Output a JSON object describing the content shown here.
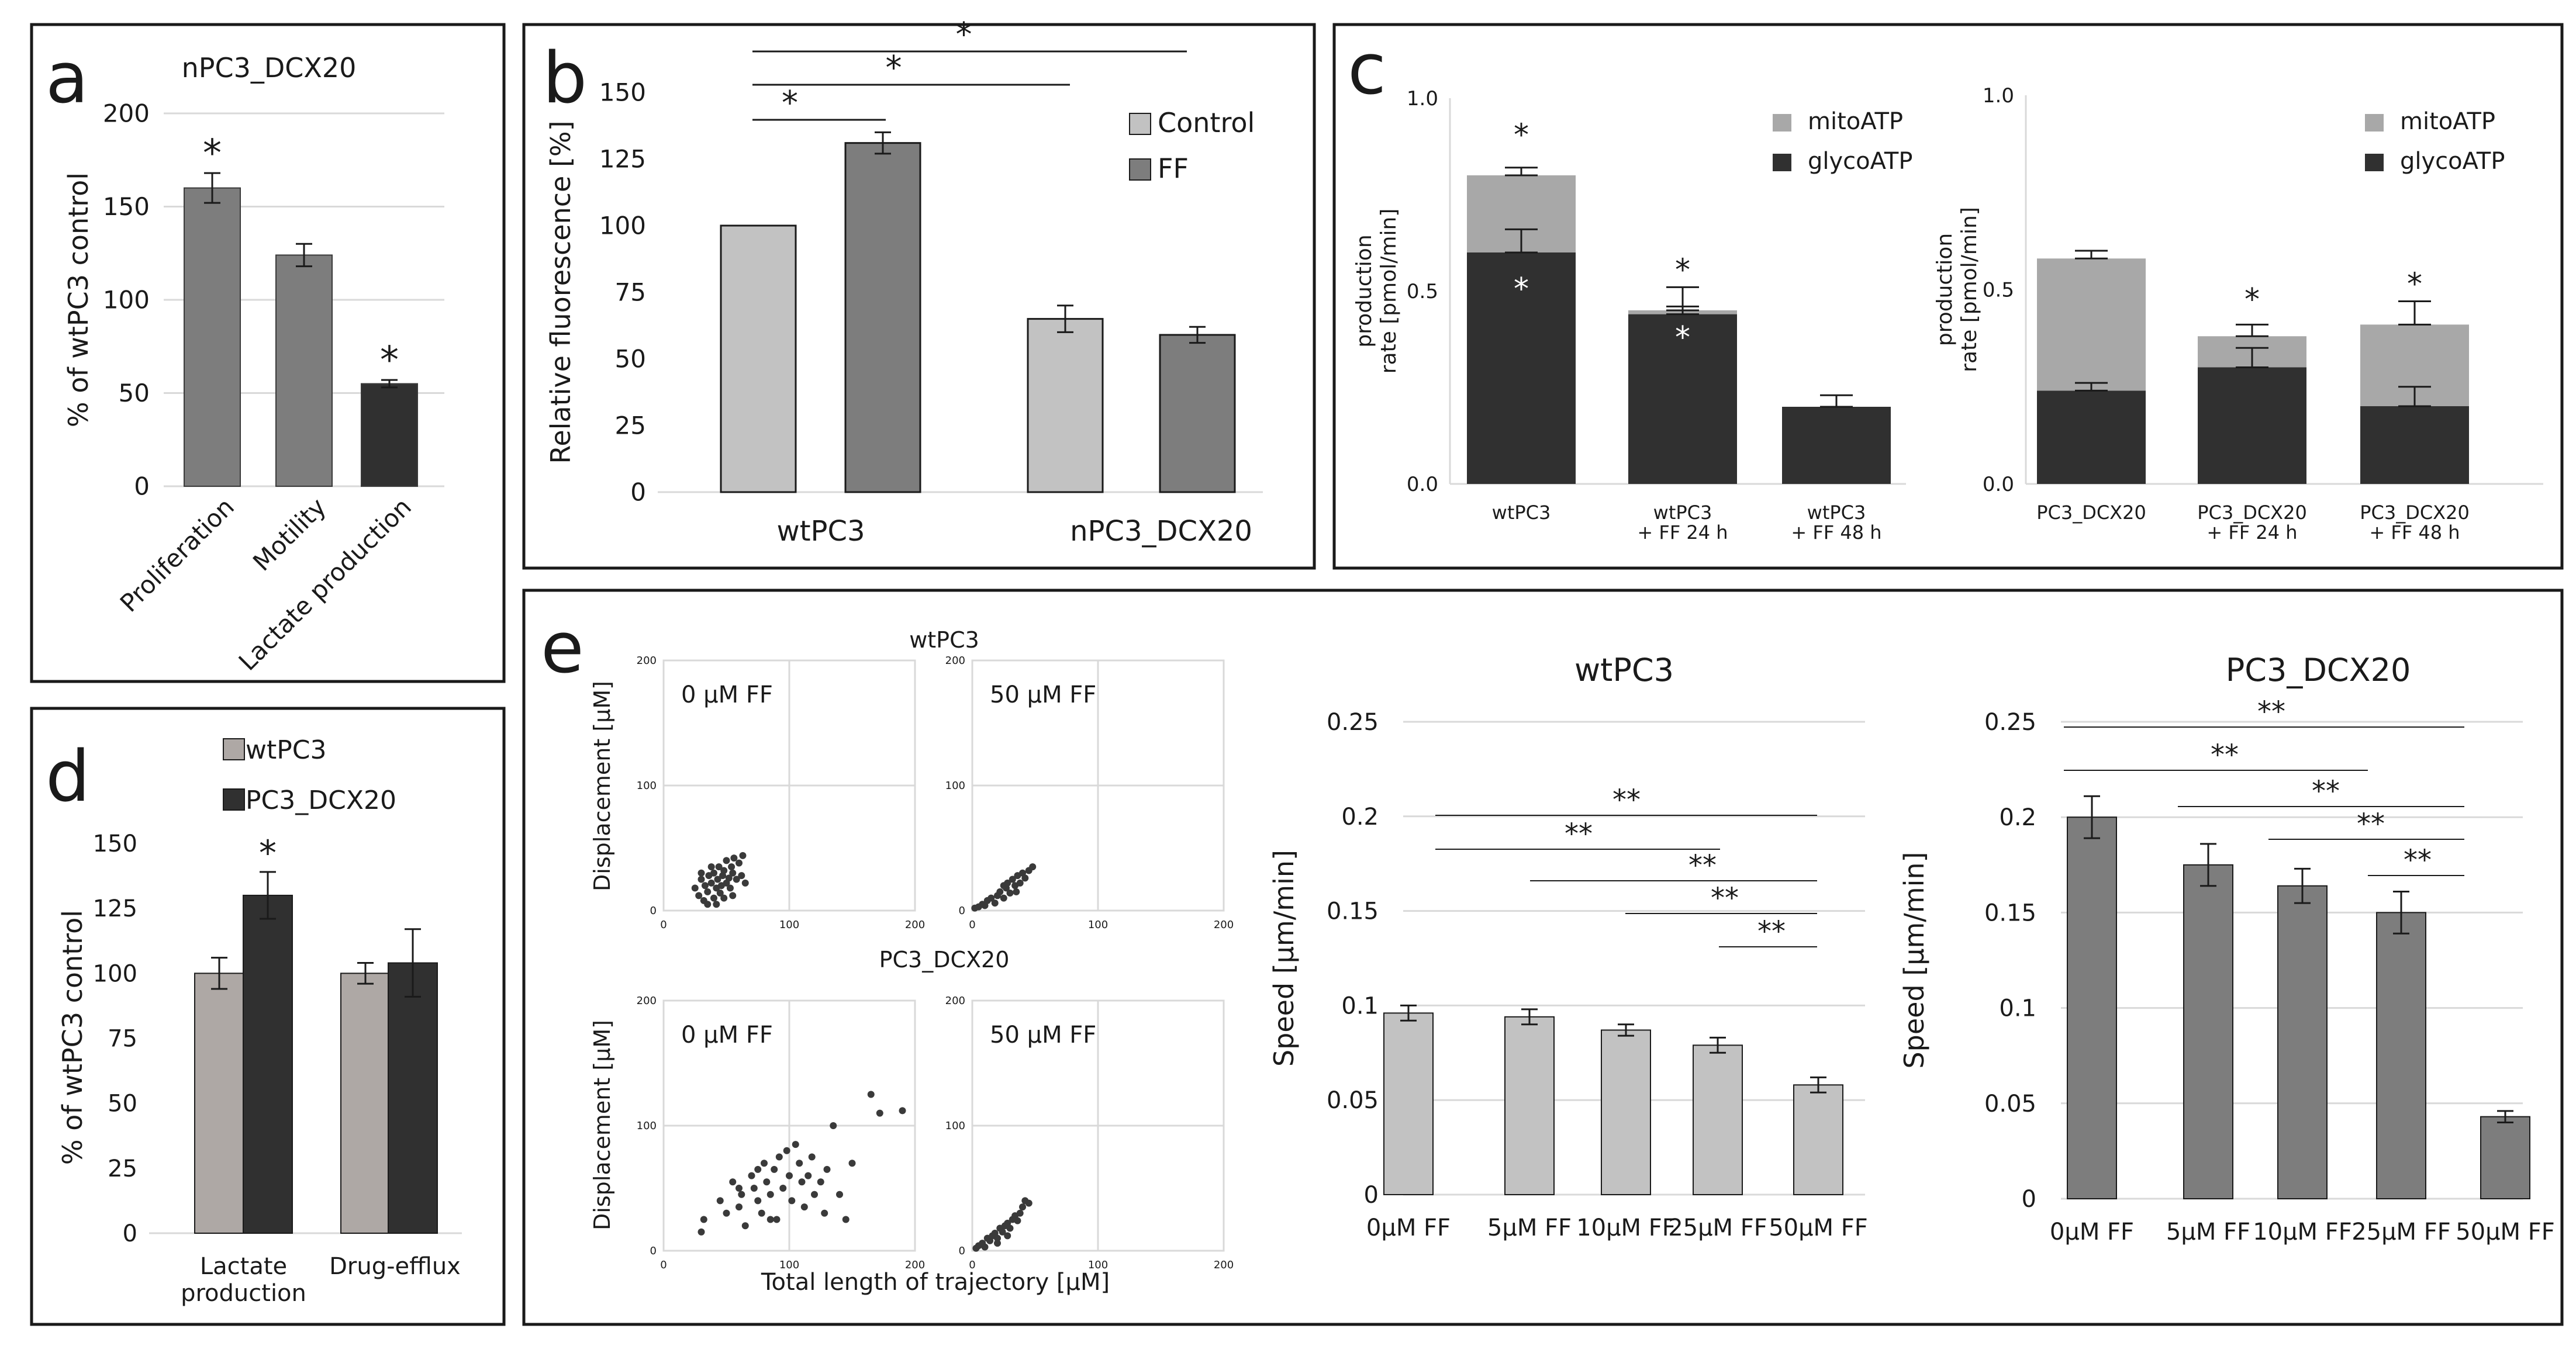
{
  "colors": {
    "light_gray": "#c2c2c2",
    "mid_gray": "#7d7d7d",
    "dark": "#303030",
    "taupe": "#aea8a5",
    "mito_gray": "#a8a8a8",
    "frame": "#1a1a1a",
    "grid": "#d9d9d9",
    "dot": "#3a3a3a"
  },
  "panels": {
    "a": {
      "letter": "a"
    },
    "b": {
      "letter": "b"
    },
    "c": {
      "letter": "c"
    },
    "d": {
      "letter": "d"
    },
    "e": {
      "letter": "e"
    }
  },
  "chart_data": [
    {
      "id": "a",
      "type": "bar",
      "title": "nPC3_DCX20",
      "ylabel": "% of wtPC3 control",
      "xlabel": "",
      "ylim": [
        0,
        200
      ],
      "yticks": [
        "0",
        "50",
        "100",
        "150",
        "200"
      ],
      "categories": [
        "Proliferation",
        "Motility",
        "Lactate production"
      ],
      "values": [
        160,
        124,
        55
      ],
      "errors": [
        8,
        6,
        2
      ],
      "bar_colors": [
        "mid_gray",
        "mid_gray",
        "dark"
      ],
      "significance": [
        "*",
        "",
        "*"
      ]
    },
    {
      "id": "b",
      "type": "bar",
      "title": "",
      "ylabel": "Relative fluorescence [%]",
      "xlabel": "",
      "ylim": [
        0,
        150
      ],
      "yticks": [
        "0",
        "25",
        "50",
        "75",
        "100",
        "125",
        "150"
      ],
      "categories": [
        "wtPC3",
        "nPC3_DCX20"
      ],
      "series": [
        {
          "name": "Control",
          "values": [
            100,
            65
          ],
          "errors": [
            0,
            5
          ]
        },
        {
          "name": "FF",
          "values": [
            131,
            59
          ],
          "errors": [
            4,
            3
          ]
        }
      ],
      "legend": [
        "Control",
        "FF"
      ],
      "legend_position": "top-right",
      "brackets": [
        "*",
        "*",
        "*"
      ]
    },
    {
      "id": "c-left",
      "type": "bar",
      "stacked": true,
      "ylabel": "production rate [pmol/min]",
      "ylim": [
        0,
        1.0
      ],
      "yticks": [
        "0.0",
        "0.5",
        "1.0"
      ],
      "categories": [
        "wtPC3",
        "wtPC3\n+ FF 24 h",
        "wtPC3\n+ FF 48 h"
      ],
      "series": [
        {
          "name": "glycoATP",
          "values": [
            0.6,
            0.44,
            0.2
          ],
          "errors": [
            0.06,
            0.02,
            0.03
          ]
        },
        {
          "name": "mitoATP",
          "values": [
            0.2,
            0.01,
            0.0
          ],
          "errors": [
            0.02,
            0.06,
            0.0
          ]
        }
      ],
      "legend": [
        "mitoATP",
        "glycoATP"
      ],
      "legend_position": "top-right",
      "significance": [
        "*",
        "*",
        ""
      ]
    },
    {
      "id": "c-right",
      "type": "bar",
      "stacked": true,
      "ylabel": "production rate [pmol/min]",
      "ylim": [
        0,
        1.0
      ],
      "yticks": [
        "0.0",
        "0.5",
        "1.0"
      ],
      "categories": [
        "PC3_DCX20",
        "PC3_DCX20\n+ FF 24 h",
        "PC3_DCX20\n+ FF 48 h"
      ],
      "series": [
        {
          "name": "glycoATP",
          "values": [
            0.24,
            0.3,
            0.2
          ],
          "errors": [
            0.02,
            0.05,
            0.05
          ]
        },
        {
          "name": "mitoATP",
          "values": [
            0.34,
            0.08,
            0.21
          ],
          "errors": [
            0.02,
            0.03,
            0.06
          ]
        }
      ],
      "legend": [
        "mitoATP",
        "glycoATP"
      ],
      "legend_position": "top-right",
      "significance": [
        "",
        "*",
        "*"
      ]
    },
    {
      "id": "d",
      "type": "bar",
      "ylabel": "% of wtPC3 control",
      "ylim": [
        0,
        150
      ],
      "yticks": [
        "0",
        "25",
        "50",
        "75",
        "100",
        "125",
        "150"
      ],
      "categories": [
        "Lactate\nproduction",
        "Drug-efflux"
      ],
      "series": [
        {
          "name": "wtPC3",
          "values": [
            100,
            100
          ],
          "errors": [
            6,
            4
          ]
        },
        {
          "name": "PC3_DCX20",
          "values": [
            130,
            104
          ],
          "errors": [
            9,
            13
          ]
        }
      ],
      "legend": [
        "wtPC3",
        "PC3_DCX20"
      ],
      "legend_position": "top",
      "significance": [
        "*",
        ""
      ]
    },
    {
      "id": "e-scatter",
      "type": "scatter",
      "xlabel": "Total length of trajectory [µM]",
      "ylabel": "Displacement [µM]",
      "xlim": [
        0,
        200
      ],
      "ylim": [
        0,
        200
      ],
      "ticks": [
        "0",
        "100",
        "200"
      ],
      "groups": [
        {
          "cell": "wtPC3",
          "label": "0 µM FF",
          "points": [
            [
              25,
              18
            ],
            [
              28,
              12
            ],
            [
              30,
              25
            ],
            [
              32,
              8
            ],
            [
              33,
              20
            ],
            [
              35,
              15
            ],
            [
              36,
              28
            ],
            [
              38,
              22
            ],
            [
              40,
              10
            ],
            [
              40,
              30
            ],
            [
              42,
              18
            ],
            [
              43,
              25
            ],
            [
              44,
              35
            ],
            [
              45,
              14
            ],
            [
              46,
              20
            ],
            [
              47,
              28
            ],
            [
              48,
              32
            ],
            [
              50,
              22
            ],
            [
              50,
              40
            ],
            [
              52,
              26
            ],
            [
              53,
              18
            ],
            [
              54,
              35
            ],
            [
              55,
              30
            ],
            [
              56,
              42
            ],
            [
              58,
              25
            ],
            [
              60,
              38
            ],
            [
              62,
              28
            ],
            [
              63,
              44
            ],
            [
              65,
              22
            ],
            [
              35,
              5
            ],
            [
              38,
              35
            ],
            [
              42,
              5
            ],
            [
              48,
              10
            ],
            [
              55,
              12
            ],
            [
              30,
              30
            ]
          ]
        },
        {
          "cell": "wtPC3",
          "label": "50 µM FF",
          "points": [
            [
              2,
              2
            ],
            [
              5,
              3
            ],
            [
              8,
              5
            ],
            [
              10,
              4
            ],
            [
              12,
              8
            ],
            [
              15,
              10
            ],
            [
              18,
              6
            ],
            [
              20,
              12
            ],
            [
              22,
              15
            ],
            [
              25,
              10
            ],
            [
              27,
              18
            ],
            [
              28,
              22
            ],
            [
              30,
              14
            ],
            [
              32,
              25
            ],
            [
              34,
              20
            ],
            [
              36,
              28
            ],
            [
              38,
              22
            ],
            [
              40,
              30
            ],
            [
              42,
              26
            ],
            [
              45,
              32
            ],
            [
              48,
              35
            ],
            [
              35,
              15
            ],
            [
              25,
              20
            ]
          ]
        },
        {
          "cell": "PC3_DCX20",
          "label": "0 µM FF",
          "points": [
            [
              30,
              15
            ],
            [
              32,
              25
            ],
            [
              45,
              40
            ],
            [
              50,
              30
            ],
            [
              55,
              55
            ],
            [
              60,
              35
            ],
            [
              62,
              45
            ],
            [
              65,
              20
            ],
            [
              70,
              60
            ],
            [
              72,
              50
            ],
            [
              75,
              65
            ],
            [
              78,
              30
            ],
            [
              80,
              70
            ],
            [
              82,
              55
            ],
            [
              85,
              45
            ],
            [
              88,
              65
            ],
            [
              90,
              25
            ],
            [
              92,
              75
            ],
            [
              95,
              50
            ],
            [
              98,
              80
            ],
            [
              100,
              60
            ],
            [
              102,
              40
            ],
            [
              105,
              85
            ],
            [
              108,
              70
            ],
            [
              110,
              55
            ],
            [
              112,
              35
            ],
            [
              115,
              60
            ],
            [
              118,
              75
            ],
            [
              120,
              45
            ],
            [
              125,
              55
            ],
            [
              128,
              30
            ],
            [
              130,
              65
            ],
            [
              135,
              100
            ],
            [
              140,
              45
            ],
            [
              145,
              25
            ],
            [
              150,
              70
            ],
            [
              165,
              125
            ],
            [
              172,
              110
            ],
            [
              190,
              112
            ],
            [
              75,
              40
            ],
            [
              60,
              50
            ],
            [
              85,
              25
            ]
          ]
        },
        {
          "cell": "PC3_DCX20",
          "label": "50 µM FF",
          "points": [
            [
              3,
              2
            ],
            [
              5,
              4
            ],
            [
              8,
              6
            ],
            [
              10,
              3
            ],
            [
              12,
              10
            ],
            [
              14,
              8
            ],
            [
              16,
              12
            ],
            [
              18,
              14
            ],
            [
              20,
              10
            ],
            [
              22,
              18
            ],
            [
              24,
              15
            ],
            [
              26,
              20
            ],
            [
              28,
              22
            ],
            [
              30,
              18
            ],
            [
              32,
              25
            ],
            [
              34,
              28
            ],
            [
              36,
              24
            ],
            [
              38,
              30
            ],
            [
              40,
              35
            ],
            [
              42,
              40
            ],
            [
              45,
              38
            ],
            [
              20,
              6
            ],
            [
              28,
              12
            ]
          ]
        }
      ]
    },
    {
      "id": "e-wtPC3",
      "type": "bar",
      "title": "wtPC3",
      "ylabel": "Speed [µm/min]",
      "ylim": [
        0,
        0.25
      ],
      "yticks": [
        "0",
        "0.05",
        "0.1",
        "0.15",
        "0.2",
        "0.25"
      ],
      "categories": [
        "0µM FF",
        "5µM FF",
        "10µM FF",
        "25µM FF",
        "50µM FF"
      ],
      "values": [
        0.096,
        0.094,
        0.087,
        0.079,
        0.058
      ],
      "errors": [
        0.004,
        0.004,
        0.003,
        0.004,
        0.004
      ],
      "brackets": [
        "**",
        "**",
        "**",
        "**",
        "**"
      ]
    },
    {
      "id": "e-PC3_DCX20",
      "type": "bar",
      "title": "PC3_DCX20",
      "ylabel": "Speed [µm/min]",
      "ylim": [
        0,
        0.25
      ],
      "yticks": [
        "0",
        "0.05",
        "0.1",
        "0.15",
        "0.2",
        "0.25"
      ],
      "categories": [
        "0µM FF",
        "5µM FF",
        "10µM FF",
        "25µM FF",
        "50µM FF"
      ],
      "values": [
        0.2,
        0.175,
        0.164,
        0.15,
        0.043
      ],
      "errors": [
        0.011,
        0.011,
        0.009,
        0.011,
        0.003
      ],
      "brackets": [
        "**",
        "**",
        "**",
        "**",
        "**"
      ]
    }
  ]
}
